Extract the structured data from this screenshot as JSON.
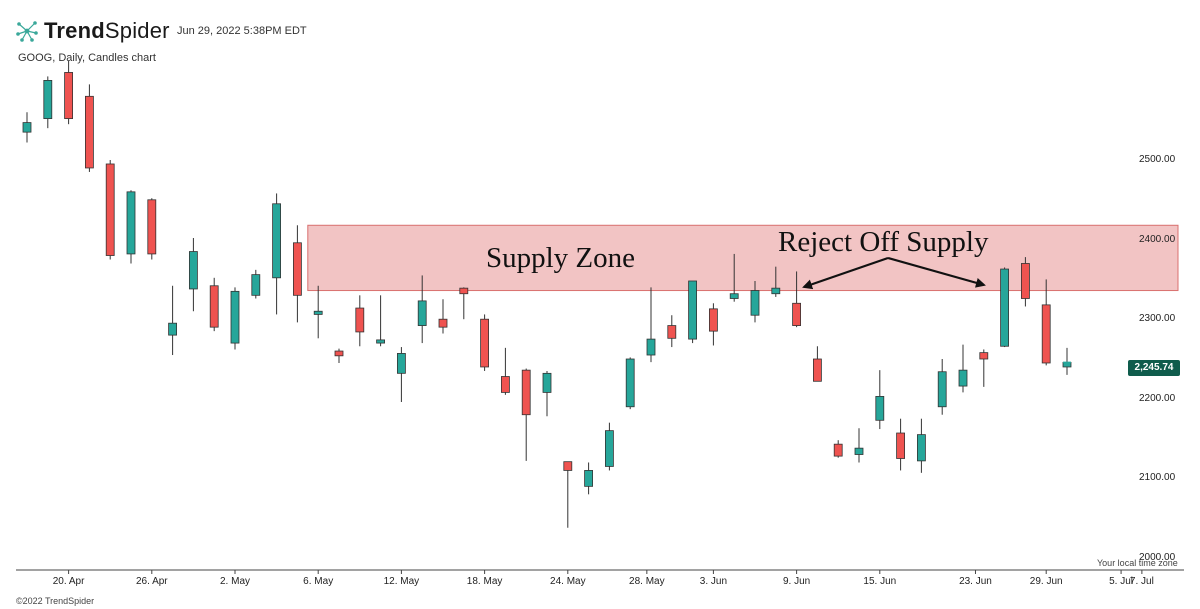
{
  "brand": {
    "name_bold": "Trend",
    "name_light": "Spider"
  },
  "timestamp": "Jun 29, 2022 5:38PM EDT",
  "footer": {
    "copyright": "©2022 TrendSpider",
    "timezone_label": "Your local time zone"
  },
  "colors": {
    "up": "#26a69a",
    "down": "#ef5350",
    "zone_fill": "#f2c4c4",
    "zone_border": "#d9706f",
    "price_tag": "#0f5c4c"
  },
  "chart_data": {
    "type": "candlestick",
    "title": "GOOG, Daily, Candles chart",
    "ylim": [
      2000,
      2650
    ],
    "y_ticks": [
      2000,
      2100,
      2200,
      2300,
      2400,
      2500
    ],
    "y_tick_labels": [
      "2000.00",
      "2100.00",
      "2200.00",
      "2300.00",
      "2400.00",
      "2500.00"
    ],
    "x_tick_labels": [
      {
        "label": "20. Apr",
        "index": 2
      },
      {
        "label": "26. Apr",
        "index": 6
      },
      {
        "label": "2. May",
        "index": 10
      },
      {
        "label": "6. May",
        "index": 14
      },
      {
        "label": "12. May",
        "index": 18
      },
      {
        "label": "18. May",
        "index": 22
      },
      {
        "label": "24. May",
        "index": 26
      },
      {
        "label": "28. May",
        "index": 29.8
      },
      {
        "label": "3. Jun",
        "index": 33
      },
      {
        "label": "9. Jun",
        "index": 37
      },
      {
        "label": "15. Jun",
        "index": 41
      },
      {
        "label": "23. Jun",
        "index": 45.6
      },
      {
        "label": "29. Jun",
        "index": 49
      },
      {
        "label": "5. Jul",
        "index": 52.6
      },
      {
        "label": "7. Jul",
        "index": 53.6
      }
    ],
    "last_price_label": "2,245.74",
    "last_price": 2245.74,
    "supply_zone": {
      "low": 2336,
      "high": 2418,
      "start_index": 13.5,
      "label": "Supply Zone"
    },
    "annotation": "Reject Off Supply",
    "candles": [
      {
        "o": 2535,
        "h": 2560,
        "l": 2522,
        "c": 2547
      },
      {
        "o": 2552,
        "h": 2605,
        "l": 2540,
        "c": 2600
      },
      {
        "o": 2610,
        "h": 2625,
        "l": 2545,
        "c": 2552
      },
      {
        "o": 2580,
        "h": 2595,
        "l": 2485,
        "c": 2490
      },
      {
        "o": 2495,
        "h": 2500,
        "l": 2375,
        "c": 2380
      },
      {
        "o": 2382,
        "h": 2462,
        "l": 2370,
        "c": 2460
      },
      {
        "o": 2450,
        "h": 2452,
        "l": 2375,
        "c": 2382
      },
      {
        "o": 2280,
        "h": 2342,
        "l": 2255,
        "c": 2295
      },
      {
        "o": 2338,
        "h": 2402,
        "l": 2310,
        "c": 2385
      },
      {
        "o": 2342,
        "h": 2352,
        "l": 2285,
        "c": 2290
      },
      {
        "o": 2270,
        "h": 2340,
        "l": 2262,
        "c": 2335
      },
      {
        "o": 2330,
        "h": 2362,
        "l": 2326,
        "c": 2356
      },
      {
        "o": 2352,
        "h": 2458,
        "l": 2306,
        "c": 2445
      },
      {
        "o": 2396,
        "h": 2418,
        "l": 2296,
        "c": 2330
      },
      {
        "o": 2306,
        "h": 2342,
        "l": 2276,
        "c": 2310
      },
      {
        "o": 2260,
        "h": 2263,
        "l": 2245,
        "c": 2254
      },
      {
        "o": 2314,
        "h": 2330,
        "l": 2266,
        "c": 2284
      },
      {
        "o": 2270,
        "h": 2330,
        "l": 2266,
        "c": 2274
      },
      {
        "o": 2232,
        "h": 2265,
        "l": 2196,
        "c": 2257
      },
      {
        "o": 2292,
        "h": 2355,
        "l": 2270,
        "c": 2323
      },
      {
        "o": 2300,
        "h": 2325,
        "l": 2282,
        "c": 2290
      },
      {
        "o": 2339,
        "h": 2340,
        "l": 2300,
        "c": 2332
      },
      {
        "o": 2300,
        "h": 2306,
        "l": 2235,
        "c": 2240
      },
      {
        "o": 2228,
        "h": 2264,
        "l": 2205,
        "c": 2208
      },
      {
        "o": 2236,
        "h": 2238,
        "l": 2122,
        "c": 2180
      },
      {
        "o": 2208,
        "h": 2235,
        "l": 2178,
        "c": 2232
      },
      {
        "o": 2121,
        "h": 2121,
        "l": 2038,
        "c": 2110
      },
      {
        "o": 2090,
        "h": 2120,
        "l": 2080,
        "c": 2110
      },
      {
        "o": 2115,
        "h": 2170,
        "l": 2110,
        "c": 2160
      },
      {
        "o": 2190,
        "h": 2252,
        "l": 2187,
        "c": 2250
      },
      {
        "o": 2255,
        "h": 2340,
        "l": 2246,
        "c": 2275
      },
      {
        "o": 2292,
        "h": 2305,
        "l": 2265,
        "c": 2276
      },
      {
        "o": 2275,
        "h": 2347,
        "l": 2270,
        "c": 2348
      },
      {
        "o": 2313,
        "h": 2320,
        "l": 2267,
        "c": 2285
      },
      {
        "o": 2326,
        "h": 2382,
        "l": 2322,
        "c": 2332
      },
      {
        "o": 2305,
        "h": 2348,
        "l": 2296,
        "c": 2336
      },
      {
        "o": 2332,
        "h": 2366,
        "l": 2328,
        "c": 2339
      },
      {
        "o": 2320,
        "h": 2360,
        "l": 2290,
        "c": 2292
      },
      {
        "o": 2250,
        "h": 2266,
        "l": 2222,
        "c": 2222
      },
      {
        "o": 2143,
        "h": 2148,
        "l": 2126,
        "c": 2128
      },
      {
        "o": 2130,
        "h": 2163,
        "l": 2120,
        "c": 2138
      },
      {
        "o": 2173,
        "h": 2236,
        "l": 2162,
        "c": 2203
      },
      {
        "o": 2157,
        "h": 2175,
        "l": 2110,
        "c": 2125
      },
      {
        "o": 2122,
        "h": 2175,
        "l": 2107,
        "c": 2155
      },
      {
        "o": 2190,
        "h": 2250,
        "l": 2180,
        "c": 2234
      },
      {
        "o": 2216,
        "h": 2268,
        "l": 2208,
        "c": 2236
      },
      {
        "o": 2258,
        "h": 2262,
        "l": 2215,
        "c": 2250
      },
      {
        "o": 2266,
        "h": 2365,
        "l": 2265,
        "c": 2363
      },
      {
        "o": 2370,
        "h": 2378,
        "l": 2316,
        "c": 2326
      },
      {
        "o": 2318,
        "h": 2350,
        "l": 2242,
        "c": 2245
      },
      {
        "o": 2240,
        "h": 2264,
        "l": 2230,
        "c": 2245.74
      }
    ]
  }
}
